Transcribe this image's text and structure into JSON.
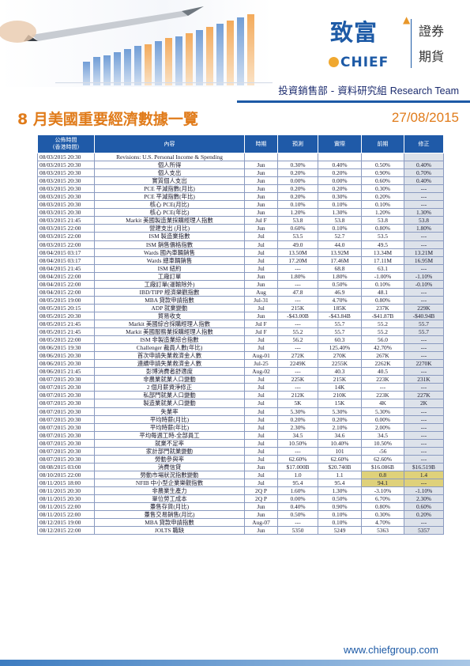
{
  "header": {
    "logo_cn": "致富",
    "logo_en": "CHIEF",
    "logo_side_1": "證券",
    "logo_side_2": "期貨",
    "dept_cn": "投資銷售部 - 資料研究組",
    "dept_en": "Research Team"
  },
  "title": "8 月美國重要經濟數據一覽",
  "date": "27/08/2015",
  "table": {
    "headers": [
      "公佈時間\n(香港時間)",
      "內容",
      "時期",
      "預測",
      "實際",
      "前期",
      "修正"
    ],
    "rows": [
      [
        "08/03/2015 20:30",
        "Revisions: U.S. Personal Income & Spending",
        "",
        "",
        "",
        "",
        ""
      ],
      [
        "08/03/2015 20:30",
        "個人所得",
        "Jun",
        "0.30%",
        "0.40%",
        "0.50%",
        "0.40%"
      ],
      [
        "08/03/2015 20:30",
        "個人支出",
        "Jun",
        "0.20%",
        "0.20%",
        "0.90%",
        "0.70%"
      ],
      [
        "08/03/2015 20:30",
        "實質個人支出",
        "Jun",
        "0.00%",
        "0.00%",
        "0.60%",
        "0.40%"
      ],
      [
        "08/03/2015 20:30",
        "PCE 平減指數(月比)",
        "Jun",
        "0.20%",
        "0.20%",
        "0.30%",
        "---"
      ],
      [
        "08/03/2015 20:30",
        "PCE 平減指數(年比)",
        "Jun",
        "0.20%",
        "0.30%",
        "0.20%",
        "---"
      ],
      [
        "08/03/2015 20:30",
        "核心 PCE(月比)",
        "Jun",
        "0.10%",
        "0.10%",
        "0.10%",
        "---"
      ],
      [
        "08/03/2015 20:30",
        "核心 PCE(年比)",
        "Jun",
        "1.20%",
        "1.30%",
        "1.20%",
        "1.30%"
      ],
      [
        "08/03/2015 21:45",
        "Markit 美國製造業採購經理人指數",
        "Jul F",
        "53.8",
        "53.8",
        "53.8",
        "53.8"
      ],
      [
        "08/03/2015 22:00",
        "營建支出 (月比)",
        "Jun",
        "0.60%",
        "0.10%",
        "0.80%",
        "1.80%"
      ],
      [
        "08/03/2015 22:00",
        "ISM 製造業指數",
        "Jul",
        "53.5",
        "52.7",
        "53.5",
        "---"
      ],
      [
        "08/03/2015 22:00",
        "ISM 銷售價格指數",
        "Jul",
        "49.0",
        "44.0",
        "49.5",
        "---"
      ],
      [
        "08/04/2015 03:17",
        "Wards 國內車輛銷售",
        "Jul",
        "13.50M",
        "13.92M",
        "13.34M",
        "13.21M"
      ],
      [
        "08/04/2015 03:17",
        "Wards 總車輛銷售",
        "Jul",
        "17.20M",
        "17.46M",
        "17.11M",
        "16.95M"
      ],
      [
        "08/04/2015 21:45",
        "ISM 紐約",
        "Jul",
        "---",
        "68.8",
        "63.1",
        "---"
      ],
      [
        "08/04/2015 22:00",
        "工廠訂單",
        "Jun",
        "1.80%",
        "1.80%",
        "-1.00%",
        "-1.10%"
      ],
      [
        "08/04/2015 22:00",
        "工廠訂單(運輸除外)",
        "Jun",
        "---",
        "0.50%",
        "0.10%",
        "-0.10%"
      ],
      [
        "08/04/2015 22:00",
        "IBD/TIPP 經濟樂觀指數",
        "Aug",
        "47.8",
        "46.9",
        "48.1",
        "---"
      ],
      [
        "08/05/2015 19:00",
        "MBA 貸款申請指數",
        "Jul-31",
        "---",
        "4.70%",
        "0.80%",
        "---"
      ],
      [
        "08/05/2015 20:15",
        "ADP 就業變動",
        "Jul",
        "215K",
        "185K",
        "237K",
        "229K"
      ],
      [
        "08/05/2015 20:30",
        "貿易收支",
        "Jun",
        "-$43.00B",
        "-$43.84B",
        "-$41.87B",
        "-$40.94B"
      ],
      [
        "08/05/2015 21:45",
        "Markit 美國綜合採購經理人指數",
        "Jul F",
        "---",
        "55.7",
        "55.2",
        "55.7"
      ],
      [
        "08/05/2015 21:45",
        "Markit 美國服務業採購經理人指數",
        "Jul F",
        "55.2",
        "55.7",
        "55.2",
        "55.7"
      ],
      [
        "08/05/2015 22:00",
        "ISM 非製造業綜合指數",
        "Jul",
        "56.2",
        "60.3",
        "56.0",
        "---"
      ],
      [
        "08/06/2015 19:30",
        "Challenger 裁員人數(年比)",
        "Jul",
        "---",
        "125.40%",
        "42.70%",
        "---"
      ],
      [
        "08/06/2015 20:30",
        "首次申請失業救濟金人數",
        "Aug-01",
        "272K",
        "270K",
        "267K",
        "---"
      ],
      [
        "08/06/2015 20:30",
        "連續申請失業救濟金人數",
        "Jul-25",
        "2249K",
        "2255K",
        "2262K",
        "2270K"
      ],
      [
        "08/06/2015 21:45",
        "彭博消費者舒適度",
        "Aug-02",
        "---",
        "40.3",
        "40.5",
        "---"
      ],
      [
        "08/07/2015 20:30",
        "非農業就業人口變動",
        "Jul",
        "225K",
        "215K",
        "223K",
        "231K"
      ],
      [
        "08/07/2015 20:30",
        "2 個月薪資淨修正",
        "Jul",
        "---",
        "14K",
        "---",
        "---"
      ],
      [
        "08/07/2015 20:30",
        "私部門就業人口變動",
        "Jul",
        "212K",
        "210K",
        "223K",
        "227K"
      ],
      [
        "08/07/2015 20:30",
        "製造業就業人口變動",
        "Jul",
        "5K",
        "15K",
        "4K",
        "2K"
      ],
      [
        "08/07/2015 20:30",
        "失業率",
        "Jul",
        "5.30%",
        "5.30%",
        "5.30%",
        "---"
      ],
      [
        "08/07/2015 20:30",
        "平均時薪(月比)",
        "Jul",
        "0.20%",
        "0.20%",
        "0.00%",
        "---"
      ],
      [
        "08/07/2015 20:30",
        "平均時薪(年比)",
        "Jul",
        "2.30%",
        "2.10%",
        "2.00%",
        "---"
      ],
      [
        "08/07/2015 20:30",
        "平均每週工時-全部員工",
        "Jul",
        "34.5",
        "34.6",
        "34.5",
        "---"
      ],
      [
        "08/07/2015 20:30",
        "就業不足率",
        "Jul",
        "10.50%",
        "10.40%",
        "10.50%",
        "---"
      ],
      [
        "08/07/2015 20:30",
        "家計部門就業變動",
        "Jul",
        "---",
        "101",
        "-56",
        "---"
      ],
      [
        "08/07/2015 20:30",
        "勞動參與率",
        "Jul",
        "62.60%",
        "62.60%",
        "62.60%",
        "---"
      ],
      [
        "08/08/2015 03:00",
        "消費信貸",
        "Jun",
        "$17.000B",
        "$20.740B",
        "$16.086B",
        "$16.519B"
      ],
      [
        "08/10/2015 22:00",
        "勞動市場狀況指數變動",
        "Jul",
        "1.0",
        "1.1",
        "0.8",
        "1.4"
      ],
      [
        "08/11/2015 18:00",
        "NFIB 中小型企業樂觀指數",
        "Jul",
        "95.4",
        "95.4",
        "94.1",
        "---"
      ],
      [
        "08/11/2015 20:30",
        "非農業生產力",
        "2Q P",
        "1.60%",
        "1.30%",
        "-3.10%",
        "-1.10%"
      ],
      [
        "08/11/2015 20:30",
        "單位勞工成本",
        "2Q P",
        "0.00%",
        "0.50%",
        "6.70%",
        "2.30%"
      ],
      [
        "08/11/2015 22:00",
        "躉售存貨(月比)",
        "Jun",
        "0.40%",
        "0.90%",
        "0.80%",
        "0.60%"
      ],
      [
        "08/11/2015 22:00",
        "躉售交易銷售(月比)",
        "Jun",
        "0.50%",
        "0.10%",
        "0.30%",
        "0.20%"
      ],
      [
        "08/12/2015 19:00",
        "MBA 貸款申請指數",
        "Aug-07",
        "---",
        "0.10%",
        "4.70%",
        "---"
      ],
      [
        "08/12/2015 22:00",
        "JOLTS 職缺",
        "Jun",
        "5350",
        "5249",
        "5363",
        "5357"
      ]
    ],
    "highlight_rows": [
      40,
      41
    ]
  },
  "footer": {
    "url": "www.chiefgroup.com"
  },
  "colors": {
    "accent_blue": "#1f5aa8",
    "title_orange": "#e07b1a",
    "revision_gray": "#dde2ea",
    "highlight_gold": "#dfd17a"
  },
  "icons": [
    "header-bar-chart-art",
    "pen-icon"
  ]
}
